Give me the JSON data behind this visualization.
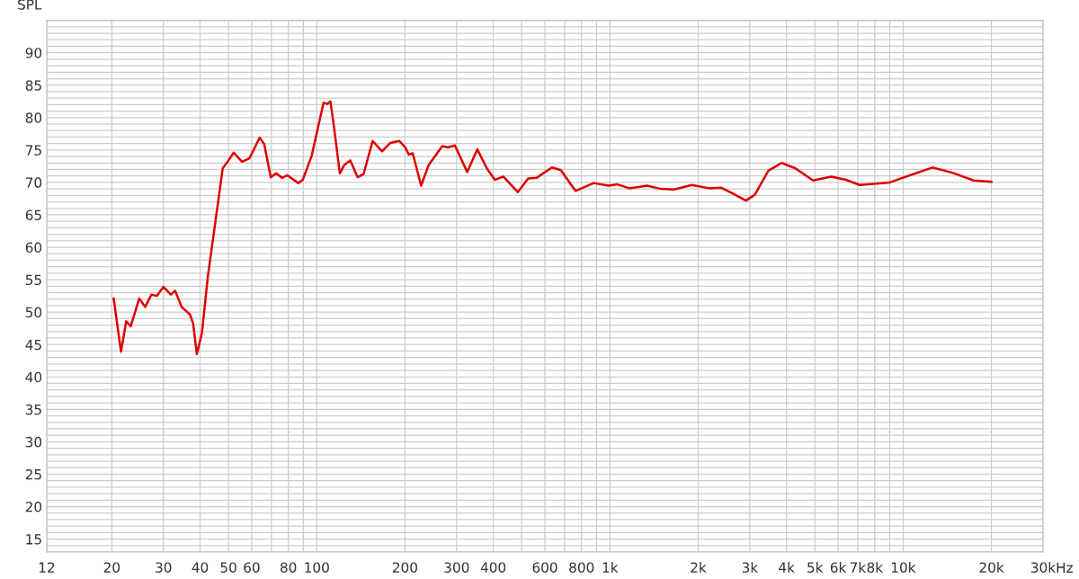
{
  "chart_data": {
    "type": "line",
    "ylabel": "SPL",
    "log": "x",
    "grid": true,
    "marker": "none",
    "line_style": "solid",
    "xlim": [
      12,
      30000
    ],
    "ylim": [
      13,
      95
    ],
    "xticks": [
      12,
      20,
      30,
      40,
      50,
      60,
      {
        "value": 70,
        "label": null
      },
      80,
      {
        "value": 90,
        "label": null
      },
      100,
      200,
      300,
      400,
      {
        "value": 500,
        "label": null
      },
      600,
      {
        "value": 700,
        "label": null
      },
      800,
      {
        "value": 900,
        "label": null
      },
      {
        "value": 1000,
        "label": "1k"
      },
      {
        "value": 2000,
        "label": "2k"
      },
      {
        "value": 3000,
        "label": "3k"
      },
      {
        "value": 4000,
        "label": "4k"
      },
      {
        "value": 5000,
        "label": "5k"
      },
      {
        "value": 6000,
        "label": "6k"
      },
      {
        "value": 7000,
        "label": "7k"
      },
      {
        "value": 8000,
        "label": "8k"
      },
      {
        "value": 9000,
        "label": null
      },
      {
        "value": 10000,
        "label": "10k"
      },
      {
        "value": 20000,
        "label": "20k"
      },
      {
        "value": 30000,
        "label": "30k"
      }
    ],
    "xlabel": "Hz",
    "yticks": [
      {
        "value": 13,
        "label": null
      },
      {
        "value": 14,
        "label": null
      },
      15,
      {
        "value": 16,
        "label": null
      },
      {
        "value": 17,
        "label": null
      },
      {
        "value": 18,
        "label": null
      },
      {
        "value": 19,
        "label": null
      },
      20,
      {
        "value": 21,
        "label": null
      },
      {
        "value": 22,
        "label": null
      },
      {
        "value": 23,
        "label": null
      },
      {
        "value": 24,
        "label": null
      },
      25,
      {
        "value": 26,
        "label": null
      },
      {
        "value": 27,
        "label": null
      },
      {
        "value": 28,
        "label": null
      },
      {
        "value": 29,
        "label": null
      },
      30,
      {
        "value": 31,
        "label": null
      },
      {
        "value": 32,
        "label": null
      },
      {
        "value": 33,
        "label": null
      },
      {
        "value": 34,
        "label": null
      },
      35,
      {
        "value": 36,
        "label": null
      },
      {
        "value": 37,
        "label": null
      },
      {
        "value": 38,
        "label": null
      },
      {
        "value": 39,
        "label": null
      },
      40,
      {
        "value": 41,
        "label": null
      },
      {
        "value": 42,
        "label": null
      },
      {
        "value": 43,
        "label": null
      },
      {
        "value": 44,
        "label": null
      },
      45,
      {
        "value": 46,
        "label": null
      },
      {
        "value": 47,
        "label": null
      },
      {
        "value": 48,
        "label": null
      },
      {
        "value": 49,
        "label": null
      },
      50,
      {
        "value": 51,
        "label": null
      },
      {
        "value": 52,
        "label": null
      },
      {
        "value": 53,
        "label": null
      },
      {
        "value": 54,
        "label": null
      },
      55,
      {
        "value": 56,
        "label": null
      },
      {
        "value": 57,
        "label": null
      },
      {
        "value": 58,
        "label": null
      },
      {
        "value": 59,
        "label": null
      },
      60,
      {
        "value": 61,
        "label": null
      },
      {
        "value": 62,
        "label": null
      },
      {
        "value": 63,
        "label": null
      },
      {
        "value": 64,
        "label": null
      },
      65,
      {
        "value": 66,
        "label": null
      },
      {
        "value": 67,
        "label": null
      },
      {
        "value": 68,
        "label": null
      },
      {
        "value": 69,
        "label": null
      },
      70,
      {
        "value": 71,
        "label": null
      },
      {
        "value": 72,
        "label": null
      },
      {
        "value": 73,
        "label": null
      },
      {
        "value": 74,
        "label": null
      },
      75,
      {
        "value": 76,
        "label": null
      },
      {
        "value": 77,
        "label": null
      },
      {
        "value": 78,
        "label": null
      },
      {
        "value": 79,
        "label": null
      },
      80,
      {
        "value": 81,
        "label": null
      },
      {
        "value": 82,
        "label": null
      },
      {
        "value": 83,
        "label": null
      },
      {
        "value": 84,
        "label": null
      },
      85,
      {
        "value": 86,
        "label": null
      },
      {
        "value": 87,
        "label": null
      },
      {
        "value": 88,
        "label": null
      },
      {
        "value": 89,
        "label": null
      },
      90,
      {
        "value": 91,
        "label": null
      },
      {
        "value": 92,
        "label": null
      },
      {
        "value": 93,
        "label": null
      },
      {
        "value": 94,
        "label": null
      },
      {
        "value": 95,
        "label": null
      }
    ],
    "series": [
      {
        "color": "#dd0000",
        "x": [
          20.3,
          21.5,
          22.4,
          23.2,
          24.8,
          26.0,
          27.3,
          28.5,
          30.0,
          31.8,
          32.9,
          34.6,
          37.0,
          37.9,
          39.0,
          40.6,
          42.5,
          47.8,
          49.5,
          52.1,
          55.6,
          58.9,
          63.9,
          66.2,
          69.7,
          72.7,
          76.1,
          79.4,
          86.5,
          89.6,
          96.1,
          100.7,
          105.5,
          108.5,
          111.3,
          114.4,
          119.9,
          124.2,
          130.1,
          137.9,
          144.5,
          155.1,
          167,
          178.3,
          191.3,
          200.3,
          206,
          212.5,
          227,
          241,
          268,
          280,
          296,
          326,
          353,
          380,
          405,
          433,
          485,
          526,
          562,
          634,
          680,
          763,
          880,
          990,
          1060,
          1165,
          1340,
          1490,
          1650,
          1900,
          2180,
          2390,
          2620,
          2910,
          3120,
          3470,
          3850,
          4280,
          4930,
          5680,
          6390,
          7110,
          8100,
          9000,
          10100,
          12580,
          14720,
          17400,
          20000
        ],
        "values": [
          52.1,
          43.9,
          48.6,
          47.8,
          52.1,
          50.8,
          52.7,
          52.5,
          53.9,
          52.7,
          53.3,
          50.8,
          49.6,
          48.2,
          43.5,
          46.8,
          55.4,
          72.2,
          73.1,
          74.6,
          73.2,
          73.7,
          76.9,
          75.9,
          70.8,
          71.4,
          70.7,
          71.1,
          69.9,
          70.4,
          74.1,
          78.2,
          82.3,
          82.1,
          82.5,
          78.7,
          71.4,
          72.7,
          73.4,
          70.8,
          71.3,
          76.4,
          74.8,
          76.1,
          76.4,
          75.4,
          74.3,
          74.5,
          69.5,
          72.7,
          75.6,
          75.4,
          75.7,
          71.6,
          75.1,
          72.2,
          70.4,
          70.9,
          68.5,
          70.6,
          70.7,
          72.3,
          71.9,
          68.7,
          69.9,
          69.5,
          69.7,
          69.1,
          69.5,
          69.0,
          68.9,
          69.6,
          69.1,
          69.2,
          68.3,
          67.2,
          68.1,
          71.8,
          73.0,
          72.2,
          70.3,
          70.9,
          70.4,
          69.6,
          69.8,
          70.0,
          70.8,
          72.3,
          71.5,
          70.3,
          70.1
        ]
      }
    ]
  }
}
